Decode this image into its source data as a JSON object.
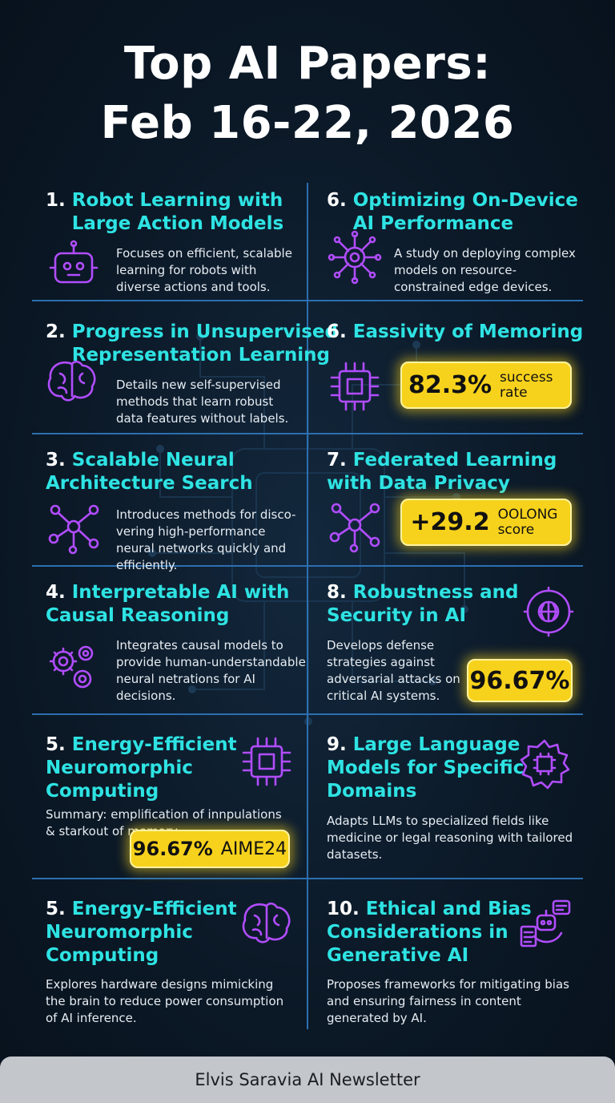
{
  "header": {
    "title_lines": [
      "Top AI Papers:",
      "Feb 16-22, 2026"
    ]
  },
  "cards": [
    {
      "number": "1.",
      "title_lines": [
        "Robot Learning with",
        "Large Action Models"
      ],
      "description": "Focuses on efficient, scalable learning for robots with diverse actions and tools."
    },
    {
      "number": "6.",
      "title_lines": [
        "Optimizing On-Device",
        "AI Performance"
      ],
      "description": "A study on deploying complex models on resource-constrained edge devices."
    },
    {
      "number": "2.",
      "title_lines": [
        "Progress in Unsupervised",
        "Representation Learning"
      ],
      "description": "Details new self-supervised methods that learn robust data features without labels."
    },
    {
      "number": "6.",
      "title_lines": [
        "Eassivity of Memoring"
      ],
      "badge": {
        "value": "82.3%",
        "label": "success rate"
      }
    },
    {
      "number": "3.",
      "title_lines": [
        "Scalable Neural",
        "Architecture Search"
      ],
      "description": "Introduces methods for disco- vering high-performance neural networks quickly and efficiently."
    },
    {
      "number": "7.",
      "title_lines": [
        "Federated Learning",
        "with Data Privacy"
      ],
      "badge": {
        "value": "+29.2",
        "label": "OOLONG score"
      }
    },
    {
      "number": "4.",
      "title_lines": [
        "Interpretable AI with",
        "Causal Reasoning"
      ],
      "description": "Integrates causal models to provide human-understandable neural netrations for AI decisions."
    },
    {
      "number": "8.",
      "title_lines": [
        "Robustness and",
        "Security in AI"
      ],
      "description": "Develops defense strategies against adversarial attacks on critical AI systems.",
      "badge": {
        "value": "96.67%"
      }
    },
    {
      "number": "5.",
      "title_lines": [
        "Energy-Efficient",
        "Neuromorphic",
        "Computing"
      ],
      "description": "Summary: emplification of innpulations & starkout of memory.",
      "badge": {
        "value": "96.67%",
        "label": "AIME24"
      }
    },
    {
      "number": "9.",
      "title_lines": [
        "Large Language",
        "Models for Specific",
        "Domains"
      ],
      "description": "Adapts LLMs to specialized fields like medicine or legal reasoning with tailored datasets."
    },
    {
      "number": "5.",
      "title_lines": [
        "Energy-Efficient",
        "Neuromorphic",
        "Computing"
      ],
      "description": "Explores hardware designs mimicking the brain to reduce power consumption of AI inference."
    },
    {
      "number": "10.",
      "title_lines": [
        "Ethical and Bias",
        "Considerations in",
        "Generative AI"
      ],
      "description": "Proposes frameworks for mitigating bias and ensuring fairness in content generated by AI."
    }
  ],
  "footer": {
    "text": "Elvis Saravia AI Newsletter"
  }
}
